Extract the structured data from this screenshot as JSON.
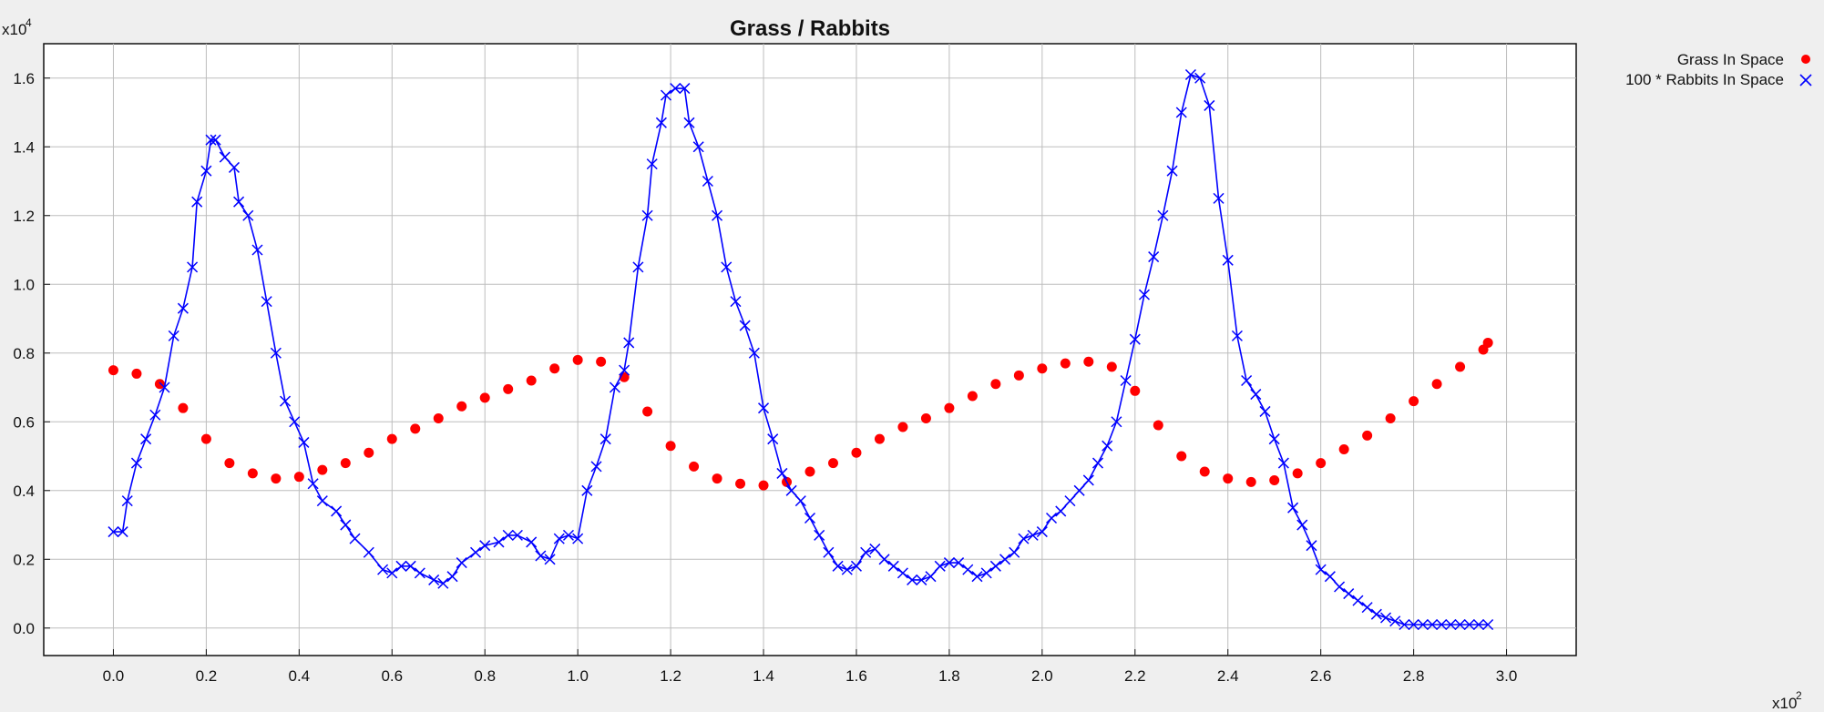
{
  "chart_data": {
    "type": "line",
    "title": "Grass / Rabbits",
    "x_multiplier": {
      "base": "x10",
      "exponent": "2"
    },
    "y_multiplier": {
      "base": "x10",
      "exponent": "4"
    },
    "xlim": [
      -0.15,
      3.15
    ],
    "ylim": [
      -0.08,
      1.7
    ],
    "x_ticks": [
      "0.0",
      "0.2",
      "0.4",
      "0.6",
      "0.8",
      "1.0",
      "1.2",
      "1.4",
      "1.6",
      "1.8",
      "2.0",
      "2.2",
      "2.4",
      "2.6",
      "2.8",
      "3.0"
    ],
    "y_ticks": [
      "0.0",
      "0.2",
      "0.4",
      "0.6",
      "0.8",
      "1.0",
      "1.2",
      "1.4",
      "1.6"
    ],
    "grid": true,
    "legend_position": "top-right",
    "series": [
      {
        "name": "Grass In Space",
        "color": "#ff0000",
        "marker": "dot",
        "line": false,
        "points": [
          [
            0.0,
            0.75
          ],
          [
            0.05,
            0.74
          ],
          [
            0.1,
            0.71
          ],
          [
            0.15,
            0.64
          ],
          [
            0.2,
            0.55
          ],
          [
            0.25,
            0.48
          ],
          [
            0.3,
            0.45
          ],
          [
            0.35,
            0.435
          ],
          [
            0.4,
            0.44
          ],
          [
            0.45,
            0.46
          ],
          [
            0.5,
            0.48
          ],
          [
            0.55,
            0.51
          ],
          [
            0.6,
            0.55
          ],
          [
            0.65,
            0.58
          ],
          [
            0.7,
            0.61
          ],
          [
            0.75,
            0.645
          ],
          [
            0.8,
            0.67
          ],
          [
            0.85,
            0.695
          ],
          [
            0.9,
            0.72
          ],
          [
            0.95,
            0.755
          ],
          [
            1.0,
            0.78
          ],
          [
            1.05,
            0.775
          ],
          [
            1.1,
            0.73
          ],
          [
            1.15,
            0.63
          ],
          [
            1.2,
            0.53
          ],
          [
            1.25,
            0.47
          ],
          [
            1.3,
            0.435
          ],
          [
            1.35,
            0.42
          ],
          [
            1.4,
            0.415
          ],
          [
            1.45,
            0.425
          ],
          [
            1.5,
            0.455
          ],
          [
            1.55,
            0.48
          ],
          [
            1.6,
            0.51
          ],
          [
            1.65,
            0.55
          ],
          [
            1.7,
            0.585
          ],
          [
            1.75,
            0.61
          ],
          [
            1.8,
            0.64
          ],
          [
            1.85,
            0.675
          ],
          [
            1.9,
            0.71
          ],
          [
            1.95,
            0.735
          ],
          [
            2.0,
            0.755
          ],
          [
            2.05,
            0.77
          ],
          [
            2.1,
            0.775
          ],
          [
            2.15,
            0.76
          ],
          [
            2.2,
            0.69
          ],
          [
            2.25,
            0.59
          ],
          [
            2.3,
            0.5
          ],
          [
            2.35,
            0.455
          ],
          [
            2.4,
            0.435
          ],
          [
            2.45,
            0.425
          ],
          [
            2.5,
            0.43
          ],
          [
            2.55,
            0.45
          ],
          [
            2.6,
            0.48
          ],
          [
            2.65,
            0.52
          ],
          [
            2.7,
            0.56
          ],
          [
            2.75,
            0.61
          ],
          [
            2.8,
            0.66
          ],
          [
            2.85,
            0.71
          ],
          [
            2.9,
            0.76
          ],
          [
            2.95,
            0.81
          ],
          [
            2.96,
            0.83
          ]
        ]
      },
      {
        "name": "100 * Rabbits In Space",
        "color": "#0000ff",
        "marker": "x",
        "line": true,
        "points": [
          [
            0.0,
            0.28
          ],
          [
            0.02,
            0.28
          ],
          [
            0.03,
            0.37
          ],
          [
            0.05,
            0.48
          ],
          [
            0.07,
            0.55
          ],
          [
            0.09,
            0.62
          ],
          [
            0.11,
            0.7
          ],
          [
            0.13,
            0.85
          ],
          [
            0.15,
            0.93
          ],
          [
            0.17,
            1.05
          ],
          [
            0.18,
            1.24
          ],
          [
            0.2,
            1.33
          ],
          [
            0.21,
            1.42
          ],
          [
            0.22,
            1.42
          ],
          [
            0.24,
            1.37
          ],
          [
            0.26,
            1.34
          ],
          [
            0.27,
            1.24
          ],
          [
            0.29,
            1.2
          ],
          [
            0.31,
            1.1
          ],
          [
            0.33,
            0.95
          ],
          [
            0.35,
            0.8
          ],
          [
            0.37,
            0.66
          ],
          [
            0.39,
            0.6
          ],
          [
            0.41,
            0.54
          ],
          [
            0.43,
            0.42
          ],
          [
            0.45,
            0.37
          ],
          [
            0.48,
            0.34
          ],
          [
            0.5,
            0.3
          ],
          [
            0.52,
            0.26
          ],
          [
            0.55,
            0.22
          ],
          [
            0.58,
            0.17
          ],
          [
            0.6,
            0.16
          ],
          [
            0.62,
            0.18
          ],
          [
            0.64,
            0.18
          ],
          [
            0.66,
            0.16
          ],
          [
            0.69,
            0.14
          ],
          [
            0.71,
            0.13
          ],
          [
            0.73,
            0.15
          ],
          [
            0.75,
            0.19
          ],
          [
            0.78,
            0.22
          ],
          [
            0.8,
            0.24
          ],
          [
            0.83,
            0.25
          ],
          [
            0.85,
            0.27
          ],
          [
            0.87,
            0.27
          ],
          [
            0.9,
            0.25
          ],
          [
            0.92,
            0.21
          ],
          [
            0.94,
            0.2
          ],
          [
            0.96,
            0.26
          ],
          [
            0.98,
            0.27
          ],
          [
            1.0,
            0.26
          ],
          [
            1.02,
            0.4
          ],
          [
            1.04,
            0.47
          ],
          [
            1.06,
            0.55
          ],
          [
            1.08,
            0.7
          ],
          [
            1.1,
            0.75
          ],
          [
            1.11,
            0.83
          ],
          [
            1.13,
            1.05
          ],
          [
            1.15,
            1.2
          ],
          [
            1.16,
            1.35
          ],
          [
            1.18,
            1.47
          ],
          [
            1.19,
            1.55
          ],
          [
            1.21,
            1.57
          ],
          [
            1.23,
            1.57
          ],
          [
            1.24,
            1.47
          ],
          [
            1.26,
            1.4
          ],
          [
            1.28,
            1.3
          ],
          [
            1.3,
            1.2
          ],
          [
            1.32,
            1.05
          ],
          [
            1.34,
            0.95
          ],
          [
            1.36,
            0.88
          ],
          [
            1.38,
            0.8
          ],
          [
            1.4,
            0.64
          ],
          [
            1.42,
            0.55
          ],
          [
            1.44,
            0.45
          ],
          [
            1.46,
            0.4
          ],
          [
            1.48,
            0.37
          ],
          [
            1.5,
            0.32
          ],
          [
            1.52,
            0.27
          ],
          [
            1.54,
            0.22
          ],
          [
            1.56,
            0.18
          ],
          [
            1.58,
            0.17
          ],
          [
            1.6,
            0.18
          ],
          [
            1.62,
            0.22
          ],
          [
            1.64,
            0.23
          ],
          [
            1.66,
            0.2
          ],
          [
            1.68,
            0.18
          ],
          [
            1.7,
            0.16
          ],
          [
            1.72,
            0.14
          ],
          [
            1.74,
            0.14
          ],
          [
            1.76,
            0.15
          ],
          [
            1.78,
            0.18
          ],
          [
            1.8,
            0.19
          ],
          [
            1.82,
            0.19
          ],
          [
            1.84,
            0.17
          ],
          [
            1.86,
            0.15
          ],
          [
            1.88,
            0.16
          ],
          [
            1.9,
            0.18
          ],
          [
            1.92,
            0.2
          ],
          [
            1.94,
            0.22
          ],
          [
            1.96,
            0.26
          ],
          [
            1.98,
            0.27
          ],
          [
            2.0,
            0.28
          ],
          [
            2.02,
            0.32
          ],
          [
            2.04,
            0.34
          ],
          [
            2.06,
            0.37
          ],
          [
            2.08,
            0.4
          ],
          [
            2.1,
            0.43
          ],
          [
            2.12,
            0.48
          ],
          [
            2.14,
            0.53
          ],
          [
            2.16,
            0.6
          ],
          [
            2.18,
            0.72
          ],
          [
            2.2,
            0.84
          ],
          [
            2.22,
            0.97
          ],
          [
            2.24,
            1.08
          ],
          [
            2.26,
            1.2
          ],
          [
            2.28,
            1.33
          ],
          [
            2.3,
            1.5
          ],
          [
            2.32,
            1.61
          ],
          [
            2.34,
            1.6
          ],
          [
            2.36,
            1.52
          ],
          [
            2.38,
            1.25
          ],
          [
            2.4,
            1.07
          ],
          [
            2.42,
            0.85
          ],
          [
            2.44,
            0.72
          ],
          [
            2.46,
            0.68
          ],
          [
            2.48,
            0.63
          ],
          [
            2.5,
            0.55
          ],
          [
            2.52,
            0.48
          ],
          [
            2.54,
            0.35
          ],
          [
            2.56,
            0.3
          ],
          [
            2.58,
            0.24
          ],
          [
            2.6,
            0.17
          ],
          [
            2.62,
            0.15
          ],
          [
            2.64,
            0.12
          ],
          [
            2.66,
            0.1
          ],
          [
            2.68,
            0.08
          ],
          [
            2.7,
            0.06
          ],
          [
            2.72,
            0.04
          ],
          [
            2.74,
            0.03
          ],
          [
            2.76,
            0.02
          ],
          [
            2.78,
            0.01
          ],
          [
            2.8,
            0.01
          ],
          [
            2.82,
            0.01
          ],
          [
            2.84,
            0.01
          ],
          [
            2.86,
            0.01
          ],
          [
            2.88,
            0.01
          ],
          [
            2.9,
            0.01
          ],
          [
            2.92,
            0.01
          ],
          [
            2.94,
            0.01
          ],
          [
            2.96,
            0.01
          ]
        ]
      }
    ]
  }
}
